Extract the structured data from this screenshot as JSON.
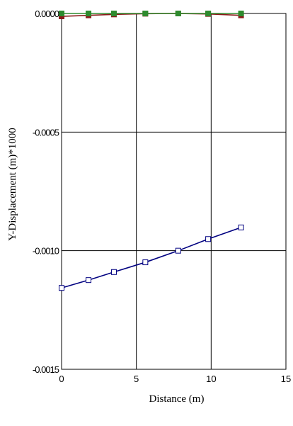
{
  "chart_data": {
    "type": "line",
    "title": "",
    "xlabel": "Distance (m)",
    "ylabel": "Y-Displacement (m)*1000",
    "xlim": [
      0,
      15
    ],
    "ylim": [
      -0.0015,
      0.0
    ],
    "x_ticks": [
      0,
      5,
      10,
      15
    ],
    "x_tick_labels": [
      "0",
      "5",
      "10",
      "15"
    ],
    "y_ticks": [
      0.0,
      -0.0005,
      -0.001,
      -0.0015
    ],
    "y_tick_labels": [
      "0.0000",
      "-0.0005",
      "-0.0010",
      "-0.0015"
    ],
    "grid": true,
    "legend": "none",
    "series": [
      {
        "color": "#000080",
        "marker": "open-square",
        "points": [
          [
            0,
            -0.001157
          ],
          [
            1.8,
            -0.001124
          ],
          [
            3.5,
            -0.00109
          ],
          [
            5.6,
            -0.001049
          ],
          [
            7.8,
            -0.001
          ],
          [
            9.8,
            -0.000951
          ],
          [
            12.0,
            -0.000902
          ]
        ]
      },
      {
        "color": "#8b1a1a",
        "marker": "filled-square",
        "points": [
          [
            0,
            -1.2e-05
          ],
          [
            1.8,
            -8e-06
          ],
          [
            3.5,
            -4e-06
          ],
          [
            5.6,
            -1e-06
          ],
          [
            7.8,
            0.0
          ],
          [
            9.8,
            -2e-06
          ],
          [
            12.0,
            -8e-06
          ]
        ]
      },
      {
        "color": "#2e8b2e",
        "marker": "filled-square",
        "points": [
          [
            0,
            0.0
          ],
          [
            1.8,
            0.0
          ],
          [
            3.5,
            0.0
          ],
          [
            5.6,
            0.0
          ],
          [
            7.8,
            0.0
          ],
          [
            9.8,
            0.0
          ],
          [
            12.0,
            0.0
          ]
        ]
      }
    ]
  }
}
